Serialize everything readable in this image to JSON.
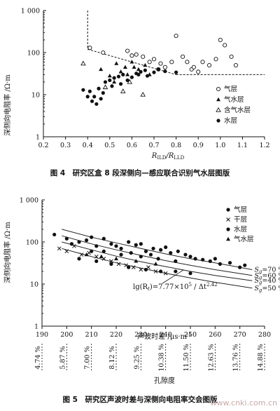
{
  "chart_data": [
    {
      "type": "scatter",
      "ylabel": "深侧向电阻率 /Ω·m",
      "xlabel_main": "R",
      "xlabel_sub1": "ILD",
      "xlabel_mid": "/R",
      "xlabel_sub2": "LLD",
      "xticks": [
        "0.2",
        "0.3",
        "0.4",
        "0.5",
        "0.6",
        "0.7",
        "0.8",
        "0.9",
        "1.0",
        "1.1",
        "1.2"
      ],
      "yticks": [
        "1",
        "10",
        "100",
        "1 000"
      ],
      "xlim": [
        0.2,
        1.2
      ],
      "ylim": [
        1,
        1000
      ],
      "yscale": "log",
      "legend_position": "right",
      "legend": [
        {
          "name": "气层",
          "marker": "open-circle"
        },
        {
          "name": "气水层",
          "marker": "filled-triangle"
        },
        {
          "name": "含气水层",
          "marker": "open-triangle"
        },
        {
          "name": "水层",
          "marker": "filled-circle"
        }
      ],
      "cutoff": {
        "x": 0.4,
        "y_upper": 1000,
        "line_to": [
          1.2,
          30
        ],
        "from": [
          0.4,
          120
        ]
      },
      "series": [
        {
          "name": "气层",
          "marker": "open-circle",
          "x": [
            0.41,
            0.47,
            0.58,
            0.62,
            0.65,
            0.68,
            0.7,
            0.73,
            0.75,
            0.78,
            0.8,
            0.83,
            0.85,
            0.87,
            0.9,
            0.92,
            0.95,
            0.98,
            1.0,
            1.02,
            1.05,
            1.07,
            0.72,
            0.88,
            0.6
          ],
          "y": [
            130,
            100,
            110,
            90,
            80,
            60,
            70,
            55,
            45,
            60,
            250,
            80,
            60,
            40,
            35,
            60,
            50,
            70,
            200,
            150,
            80,
            50,
            40,
            45,
            85
          ]
        },
        {
          "name": "气水层",
          "marker": "filled-triangle",
          "x": [
            0.46,
            0.5,
            0.53,
            0.55,
            0.57,
            0.6,
            0.63,
            0.66,
            0.68,
            0.52,
            0.58,
            0.61
          ],
          "y": [
            40,
            28,
            55,
            35,
            45,
            60,
            40,
            50,
            30,
            20,
            30,
            45
          ]
        },
        {
          "name": "含气水层",
          "marker": "open-triangle",
          "x": [
            0.38,
            0.48,
            0.56,
            0.65,
            0.59
          ],
          "y": [
            55,
            15,
            12,
            10,
            20
          ]
        },
        {
          "name": "水层",
          "marker": "filled-circle",
          "x": [
            0.38,
            0.4,
            0.41,
            0.42,
            0.43,
            0.44,
            0.45,
            0.46,
            0.47,
            0.48,
            0.5,
            0.52,
            0.54,
            0.56,
            0.58,
            0.6,
            0.62,
            0.64,
            0.66,
            0.7,
            0.72,
            0.8,
            0.51,
            0.55,
            0.63,
            0.67,
            0.75
          ],
          "y": [
            13,
            9,
            12,
            7,
            9,
            6,
            14,
            8,
            11,
            20,
            22,
            25,
            27,
            30,
            22,
            26,
            32,
            35,
            38,
            34,
            40,
            34,
            16,
            18,
            30,
            28,
            36
          ]
        }
      ]
    },
    {
      "type": "scatter",
      "ylabel": "深侧向电阻率 /Ω·m",
      "xlabel": "声波时差 /μs·m",
      "xlabel_sup": "-1",
      "x2label": "孔隙度",
      "xticks": [
        "190",
        "200",
        "210",
        "220",
        "230",
        "240",
        "250",
        "260",
        "270",
        "280"
      ],
      "x2ticks": [
        "4.74 %",
        "5.87 %",
        "7.00 %",
        "8.12 %",
        "9.25 %",
        "10.38 %",
        "11.50 %",
        "12.63 %",
        "13.76 %",
        "14.88 %"
      ],
      "yticks": [
        "1",
        "10",
        "100",
        "1 000"
      ],
      "xlim": [
        190,
        280
      ],
      "ylim": [
        1,
        1000
      ],
      "yscale": "log",
      "legend_position": "top-right",
      "legend": [
        {
          "name": "气层",
          "marker": "filled-circle"
        },
        {
          "name": "干层",
          "marker": "cross"
        },
        {
          "name": "水层",
          "marker": "filled-circle"
        },
        {
          "name": "气水层",
          "marker": "filled-triangle"
        }
      ],
      "equation_main": "lg(R",
      "equation_sub": "t",
      "equation_mid": ")=7.77×10",
      "equation_sup1": "5",
      "equation_tail": " / Δt",
      "equation_sup2": "2.42",
      "curves": [
        {
          "label": "S",
          "label_sub": "g",
          "label_tail": "=70 %",
          "x": [
            198,
            210,
            220,
            230,
            240,
            250,
            260,
            275
          ],
          "y": [
            200,
            130,
            95,
            70,
            52,
            40,
            32,
            22
          ]
        },
        {
          "label": "S",
          "label_sub": "g",
          "label_tail": "=60 %",
          "x": [
            198,
            210,
            220,
            230,
            240,
            250,
            260,
            275
          ],
          "y": [
            140,
            90,
            65,
            48,
            36,
            28,
            22,
            16
          ]
        },
        {
          "label": "S",
          "label_sub": "g",
          "label_tail": "=40 %",
          "x": [
            198,
            210,
            220,
            230,
            240,
            250,
            260,
            275
          ],
          "y": [
            100,
            65,
            46,
            34,
            26,
            20,
            16,
            12
          ]
        },
        {
          "label": "S",
          "label_sub": "g",
          "label_tail": "=50 %",
          "x": [
            198,
            210,
            220,
            230,
            240,
            250,
            260,
            275
          ],
          "y": [
            70,
            45,
            32,
            24,
            18,
            14,
            11,
            8
          ]
        }
      ],
      "series": [
        {
          "name": "气层",
          "marker": "filled-circle",
          "x": [
            195,
            200,
            202,
            205,
            208,
            210,
            212,
            215,
            218,
            220,
            222,
            225,
            228,
            230,
            232,
            235,
            238,
            240,
            242,
            245,
            248,
            250,
            252,
            255,
            258,
            260,
            262,
            266,
            270,
            272,
            215,
            222,
            230,
            237,
            244,
            210,
            226,
            234
          ],
          "y": [
            150,
            120,
            90,
            100,
            110,
            130,
            80,
            120,
            90,
            80,
            70,
            100,
            85,
            90,
            60,
            70,
            65,
            75,
            55,
            60,
            50,
            45,
            40,
            38,
            35,
            40,
            30,
            32,
            25,
            28,
            60,
            50,
            45,
            40,
            35,
            60,
            55,
            50
          ]
        },
        {
          "name": "干层",
          "marker": "cross",
          "x": [
            197,
            200,
            203,
            206,
            209,
            212,
            215,
            218,
            221,
            224,
            227,
            230,
            233,
            236,
            240
          ],
          "y": [
            70,
            60,
            80,
            50,
            55,
            45,
            40,
            35,
            30,
            28,
            25,
            22,
            25,
            20,
            18
          ]
        },
        {
          "name": "水层",
          "marker": "filled-circle",
          "x": [
            205,
            212,
            218,
            225,
            232,
            238,
            244,
            250
          ],
          "y": [
            40,
            35,
            30,
            25,
            22,
            20,
            20,
            18
          ]
        },
        {
          "name": "气水层",
          "marker": "filled-triangle",
          "x": [
            208,
            214,
            220,
            228,
            236
          ],
          "y": [
            50,
            45,
            40,
            35,
            30
          ]
        }
      ]
    }
  ],
  "captions": {
    "fig4": "图 4　研究区盒 8 段深侧向—感应联合识别气水层图版",
    "fig5": "图 5　研究区声波时差与深侧向电阻率交会图版"
  },
  "watermark": "www.cnki.com.cn"
}
